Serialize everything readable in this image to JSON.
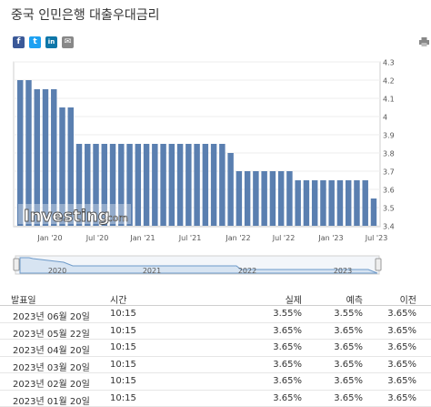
{
  "title": "중국 인민은행 대출우대금리",
  "share": {
    "facebook": "f",
    "twitter": "t",
    "linkedin": "in",
    "email": "✉"
  },
  "chart_data": {
    "type": "bar",
    "title": "",
    "xlabel": "",
    "ylabel": "",
    "ylim": [
      3.4,
      4.3
    ],
    "y_ticks": [
      "3.4",
      "3.5",
      "3.6",
      "3.7",
      "3.8",
      "3.9",
      "4",
      "4.1",
      "4.2",
      "4.3"
    ],
    "x_ticks": [
      "Jan '20",
      "Jul '20",
      "Jan '21",
      "Jul '21",
      "Jan '22",
      "Jul '22",
      "Jan '23",
      "Jul '23"
    ],
    "values": [
      4.2,
      4.2,
      4.15,
      4.15,
      4.15,
      4.05,
      4.05,
      3.85,
      3.85,
      3.85,
      3.85,
      3.85,
      3.85,
      3.85,
      3.85,
      3.85,
      3.85,
      3.85,
      3.85,
      3.85,
      3.85,
      3.85,
      3.85,
      3.85,
      3.85,
      3.8,
      3.7,
      3.7,
      3.7,
      3.7,
      3.7,
      3.7,
      3.7,
      3.65,
      3.65,
      3.65,
      3.65,
      3.65,
      3.65,
      3.65,
      3.65,
      3.65,
      3.55
    ],
    "color": "#5a7fb0",
    "watermark": "Investing",
    "watermark_suffix": ".com",
    "navigator_years": [
      "2020",
      "2021",
      "2022",
      "2023"
    ]
  },
  "table": {
    "headers": [
      "발표일",
      "시간",
      "실제",
      "예측",
      "이전"
    ],
    "rows": [
      [
        "2023년 06월 20일",
        "10:15",
        "3.55%",
        "3.55%",
        "3.65%"
      ],
      [
        "2023년 05월 22일",
        "10:15",
        "3.65%",
        "3.65%",
        "3.65%"
      ],
      [
        "2023년 04월 20일",
        "10:15",
        "3.65%",
        "3.65%",
        "3.65%"
      ],
      [
        "2023년 03월 20일",
        "10:15",
        "3.65%",
        "3.65%",
        "3.65%"
      ],
      [
        "2023년 02월 20일",
        "10:15",
        "3.65%",
        "3.65%",
        "3.65%"
      ],
      [
        "2023년 01월 20일",
        "10:15",
        "3.65%",
        "3.65%",
        "3.65%"
      ]
    ]
  },
  "colors": {
    "facebook": "#3b5998",
    "twitter": "#1da1f2",
    "linkedin": "#0e76a8",
    "email": "#888888"
  }
}
